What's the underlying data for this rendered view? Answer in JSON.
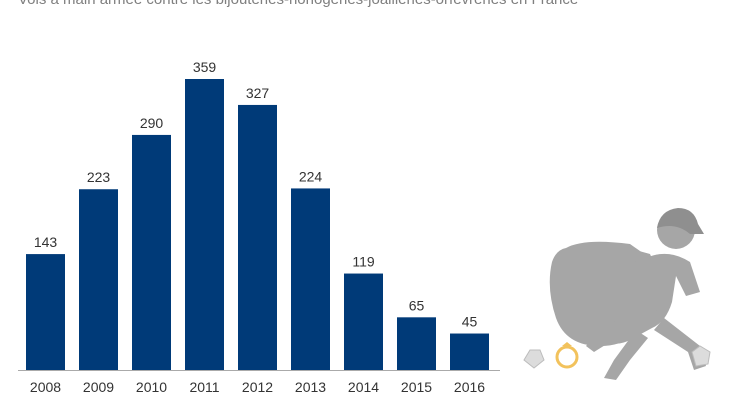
{
  "subtitle": "Vols à main armée contre les bijouteries-horlogeries-joailleries-orfèvreries en France",
  "colors": {
    "bar": "#003a78",
    "axis": "#aaaaaa",
    "illustration": "#a6a6a6",
    "ring": "#f2c25c"
  },
  "illustration": {
    "icon": "thief-with-sack-icon",
    "ring_icon": "gold-ring-icon",
    "gem_icon": "diamond-icon"
  },
  "chart_data": {
    "type": "bar",
    "title": "",
    "xlabel": "",
    "ylabel": "",
    "categories": [
      "2008",
      "2009",
      "2010",
      "2011",
      "2012",
      "2013",
      "2014",
      "2015",
      "2016"
    ],
    "values": [
      143,
      223,
      290,
      359,
      327,
      224,
      119,
      65,
      45
    ],
    "data_labels": [
      "143",
      "223",
      "290",
      "359",
      "327",
      "224",
      "119",
      "65",
      "45"
    ],
    "ylim": [
      0,
      380
    ],
    "grid": false,
    "legend": "none"
  }
}
